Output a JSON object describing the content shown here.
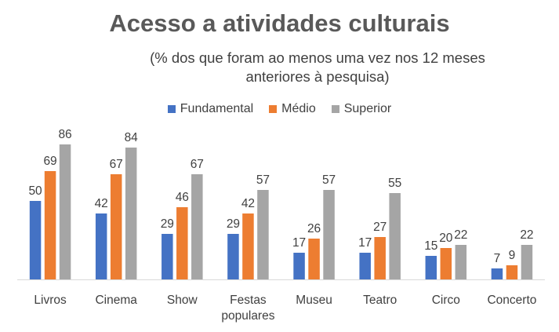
{
  "chart_data": {
    "type": "bar",
    "title": "Acesso a atividades culturais",
    "subtitle": "(% dos que foram ao menos uma vez nos 12 meses anteriores à pesquisa)",
    "categories": [
      [
        "Livros"
      ],
      [
        "Cinema"
      ],
      [
        "Show"
      ],
      [
        "Festas",
        "populares"
      ],
      [
        "Museu"
      ],
      [
        "Teatro"
      ],
      [
        "Circo"
      ],
      [
        "Concerto"
      ]
    ],
    "series": [
      {
        "name": "Fundamental",
        "color": "#4472C4",
        "values": [
          50,
          42,
          29,
          29,
          17,
          17,
          15,
          7
        ]
      },
      {
        "name": "Médio",
        "color": "#ED7D31",
        "values": [
          69,
          67,
          46,
          42,
          26,
          27,
          20,
          9
        ]
      },
      {
        "name": "Superior",
        "color": "#A5A5A5",
        "values": [
          86,
          84,
          67,
          57,
          57,
          55,
          22,
          22
        ]
      }
    ],
    "ylim": [
      0,
      100
    ],
    "grid": false,
    "legend_position": "top",
    "data_labels": true
  }
}
